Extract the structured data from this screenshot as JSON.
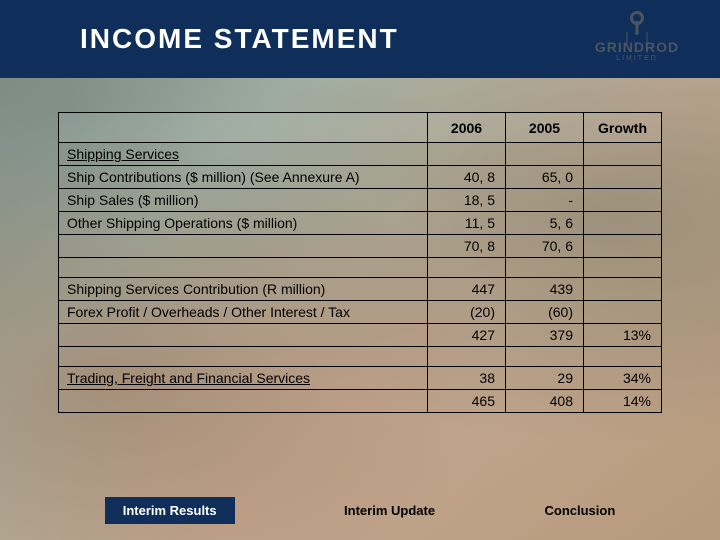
{
  "header": {
    "title": "INCOME STATEMENT",
    "brand": "GRINDROD",
    "brand_sub": "LIMITED"
  },
  "table": {
    "columns": [
      "",
      "2006",
      "2005",
      "Growth"
    ],
    "rows": [
      {
        "type": "section",
        "label": "Shipping Services"
      },
      {
        "type": "data",
        "label": "Ship Contributions ($ million) (See Annexure A)",
        "c1": "40, 8",
        "c2": "65, 0",
        "c3": ""
      },
      {
        "type": "data",
        "label": "Ship Sales ($ million)",
        "c1": "18, 5",
        "c2": "-",
        "c3": ""
      },
      {
        "type": "data",
        "label": "Other Shipping Operations ($ million)",
        "c1": "11, 5",
        "c2": "5, 6",
        "c3": ""
      },
      {
        "type": "data",
        "label": "",
        "c1": "70, 8",
        "c2": "70, 6",
        "c3": ""
      },
      {
        "type": "spacer"
      },
      {
        "type": "data",
        "label": "Shipping Services Contribution (R million)",
        "c1": "447",
        "c2": "439",
        "c3": ""
      },
      {
        "type": "data",
        "label": "Forex Profit / Overheads / Other Interest / Tax",
        "c1": "(20)",
        "c2": "(60)",
        "c3": ""
      },
      {
        "type": "data",
        "label": "",
        "c1": "427",
        "c2": "379",
        "c3": "13%"
      },
      {
        "type": "spacer"
      },
      {
        "type": "section-data",
        "label": "Trading, Freight and Financial Services",
        "c1": "38",
        "c2": "29",
        "c3": "34%"
      },
      {
        "type": "data",
        "label": "",
        "c1": "465",
        "c2": "408",
        "c3": "14%"
      }
    ]
  },
  "footer": {
    "items": [
      "Interim Results",
      "Interim Update",
      "Conclusion"
    ],
    "active_index": 0
  },
  "colors": {
    "header_bg": "#0f2f5a",
    "border": "#000000",
    "text": "#000000"
  }
}
